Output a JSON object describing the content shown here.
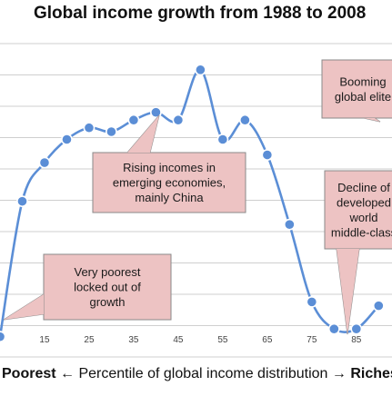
{
  "chart_data": {
    "type": "line",
    "title": "Global income growth from 1988 to 2008",
    "xlabel": {
      "left": "Poorest",
      "middle": "Percentile of global income distribution",
      "left_arrow": "←",
      "right_arrow": "→",
      "right": "Richest"
    },
    "x_ticks": [
      15,
      25,
      35,
      45,
      55,
      65,
      75,
      85
    ],
    "xlim": [
      5,
      93
    ],
    "y_ticks": [],
    "ylim": [
      -5,
      80
    ],
    "grid": true,
    "series": [
      {
        "color": "#5b8ed6",
        "x": [
          5,
          10,
          15,
          20,
          25,
          30,
          35,
          40,
          45,
          50,
          55,
          60,
          65,
          70,
          75,
          80,
          85,
          90
        ],
        "y": [
          0,
          35,
          45,
          51,
          54,
          53,
          56,
          58,
          56,
          69,
          51,
          56,
          47,
          29,
          9,
          2,
          2,
          8
        ]
      }
    ],
    "annotations": [
      {
        "id": "poorest",
        "text": [
          "Very poorest",
          "locked out of",
          "growth"
        ]
      },
      {
        "id": "rising",
        "text": [
          "Rising incomes in",
          "emerging economies,",
          "mainly China"
        ]
      },
      {
        "id": "decline",
        "text": [
          "Decline of",
          "developed",
          "world",
          "middle-class"
        ]
      },
      {
        "id": "booming",
        "text": [
          "Booming",
          "global elite"
        ]
      }
    ]
  }
}
